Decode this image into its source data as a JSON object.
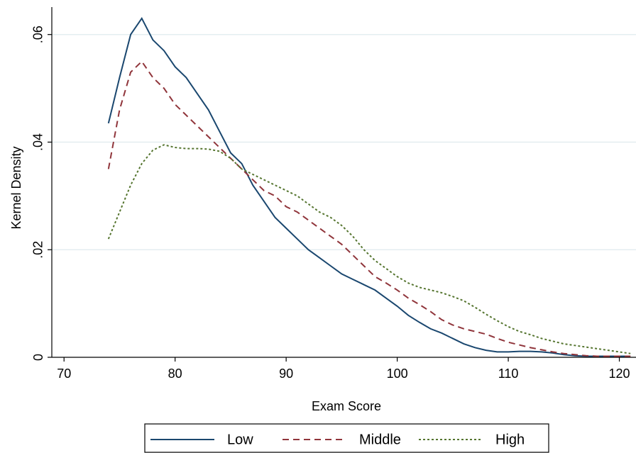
{
  "chart_data": {
    "type": "line",
    "x_label": "Exam Score",
    "y_label": "Kernel Density",
    "x": [
      74,
      75,
      76,
      77,
      78,
      79,
      80,
      81,
      82,
      83,
      84,
      85,
      86,
      87,
      88,
      89,
      90,
      91,
      92,
      93,
      94,
      95,
      96,
      97,
      98,
      99,
      100,
      101,
      102,
      103,
      104,
      105,
      106,
      107,
      108,
      109,
      110,
      111,
      112,
      113,
      114,
      115,
      116,
      117,
      118,
      119,
      120,
      121
    ],
    "series": [
      {
        "name": "Low",
        "color": "#1a476f",
        "dash": "none",
        "values": [
          0.0435,
          0.052,
          0.06,
          0.063,
          0.059,
          0.057,
          0.054,
          0.052,
          0.049,
          0.046,
          0.042,
          0.038,
          0.036,
          0.032,
          0.029,
          0.026,
          0.024,
          0.022,
          0.02,
          0.0185,
          0.017,
          0.0155,
          0.0145,
          0.0135,
          0.0125,
          0.011,
          0.0095,
          0.0078,
          0.0065,
          0.0053,
          0.0045,
          0.0035,
          0.0025,
          0.0018,
          0.0013,
          0.001,
          0.001,
          0.0011,
          0.0011,
          0.001,
          0.0008,
          0.0005,
          0.0003,
          0.0002,
          0.0002,
          0.0002,
          0.0002,
          0.0002
        ]
      },
      {
        "name": "Middle",
        "color": "#90353b",
        "dash": "9,6",
        "values": [
          0.035,
          0.046,
          0.053,
          0.055,
          0.052,
          0.05,
          0.047,
          0.045,
          0.043,
          0.041,
          0.039,
          0.037,
          0.035,
          0.033,
          0.031,
          0.03,
          0.028,
          0.027,
          0.0255,
          0.024,
          0.0225,
          0.021,
          0.019,
          0.017,
          0.015,
          0.0138,
          0.0125,
          0.011,
          0.0098,
          0.0085,
          0.007,
          0.006,
          0.0053,
          0.0048,
          0.0043,
          0.0035,
          0.0028,
          0.0023,
          0.0018,
          0.0014,
          0.001,
          0.0007,
          0.0005,
          0.0003,
          0.0002,
          0.0002,
          0.0002,
          0.0002
        ]
      },
      {
        "name": "High",
        "color": "#55752f",
        "dash": "3,3",
        "values": [
          0.022,
          0.027,
          0.032,
          0.036,
          0.0385,
          0.0395,
          0.039,
          0.0388,
          0.0388,
          0.0387,
          0.0383,
          0.037,
          0.035,
          0.034,
          0.033,
          0.032,
          0.031,
          0.03,
          0.0285,
          0.027,
          0.026,
          0.0245,
          0.0225,
          0.02,
          0.018,
          0.0165,
          0.015,
          0.0138,
          0.013,
          0.0125,
          0.012,
          0.0113,
          0.0105,
          0.0093,
          0.008,
          0.0068,
          0.0057,
          0.0048,
          0.0042,
          0.0035,
          0.003,
          0.0025,
          0.0022,
          0.0019,
          0.0016,
          0.0013,
          0.001,
          0.0007
        ]
      }
    ],
    "xlim": [
      68.9,
      121.5
    ],
    "ylim": [
      0,
      0.0651
    ],
    "xticks": [
      70,
      80,
      90,
      100,
      110,
      120
    ],
    "yticks": [
      0,
      {
        "value": 0.02,
        "label": ".02"
      },
      {
        "value": 0.04,
        "label": ".04"
      },
      {
        "value": 0.06,
        "label": ".06"
      }
    ],
    "grid": true,
    "legend_position": "bottom"
  }
}
